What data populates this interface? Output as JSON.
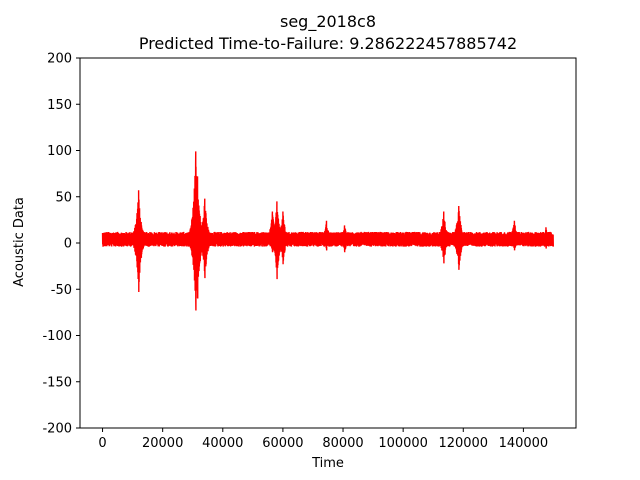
{
  "chart_data": {
    "type": "line",
    "title": "seg_2018c8",
    "subtitle": "Predicted Time-to-Failure: 9.286222457885742",
    "xlabel": "Time",
    "ylabel": "Acoustic Data",
    "xlim": [
      -7500,
      157500
    ],
    "ylim": [
      -200,
      200
    ],
    "x_ticks": [
      0,
      20000,
      40000,
      60000,
      80000,
      100000,
      120000,
      140000
    ],
    "y_ticks": [
      -200,
      -150,
      -100,
      -50,
      0,
      50,
      100,
      150,
      200
    ],
    "grid": false,
    "series": [
      {
        "color": "#ff0000",
        "sample_count": 150000,
        "baseline_band": [
          -4,
          12
        ],
        "events": [
          {
            "x": 12000,
            "max": 57,
            "min": -53
          },
          {
            "x": 31000,
            "max": 99,
            "min": -73
          },
          {
            "x": 31600,
            "max": 72,
            "min": -60
          },
          {
            "x": 34000,
            "max": 48,
            "min": -38
          },
          {
            "x": 56500,
            "max": 34,
            "min": -10
          },
          {
            "x": 58000,
            "max": 45,
            "min": -39
          },
          {
            "x": 60000,
            "max": 34,
            "min": -23
          },
          {
            "x": 74500,
            "max": 24,
            "min": -8
          },
          {
            "x": 80500,
            "max": 19,
            "min": -10
          },
          {
            "x": 113500,
            "max": 34,
            "min": -22
          },
          {
            "x": 118500,
            "max": 40,
            "min": -29
          },
          {
            "x": 137000,
            "max": 24,
            "min": -8
          },
          {
            "x": 147500,
            "max": 17,
            "min": -6
          }
        ]
      }
    ]
  }
}
